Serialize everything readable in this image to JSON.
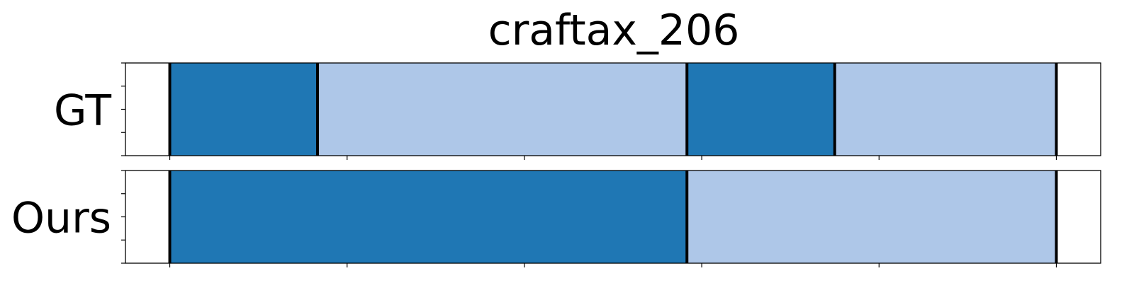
{
  "chart_data": {
    "type": "bar",
    "title": "craftax_206",
    "rows": [
      {
        "label": "GT",
        "segments": [
          {
            "start": 0,
            "end": 250,
            "color": "#1f77b4"
          },
          {
            "start": 250,
            "end": 875,
            "color": "#aec7e8"
          },
          {
            "start": 875,
            "end": 1125,
            "color": "#1f77b4"
          },
          {
            "start": 1125,
            "end": 1500,
            "color": "#aec7e8"
          }
        ],
        "boundaries": [
          0,
          250,
          875,
          1125,
          1500
        ]
      },
      {
        "label": "Ours",
        "segments": [
          {
            "start": 0,
            "end": 875,
            "color": "#1f77b4"
          },
          {
            "start": 875,
            "end": 1500,
            "color": "#aec7e8"
          }
        ],
        "boundaries": [
          0,
          875,
          1500
        ]
      }
    ],
    "xlim": [
      -75,
      1575
    ],
    "x_ticks": [
      0,
      300,
      600,
      900,
      1200,
      1500
    ],
    "show_tick_labels": false,
    "colors": {
      "dark": "#1f77b4",
      "light": "#aec7e8",
      "boundary": "#000000"
    }
  }
}
